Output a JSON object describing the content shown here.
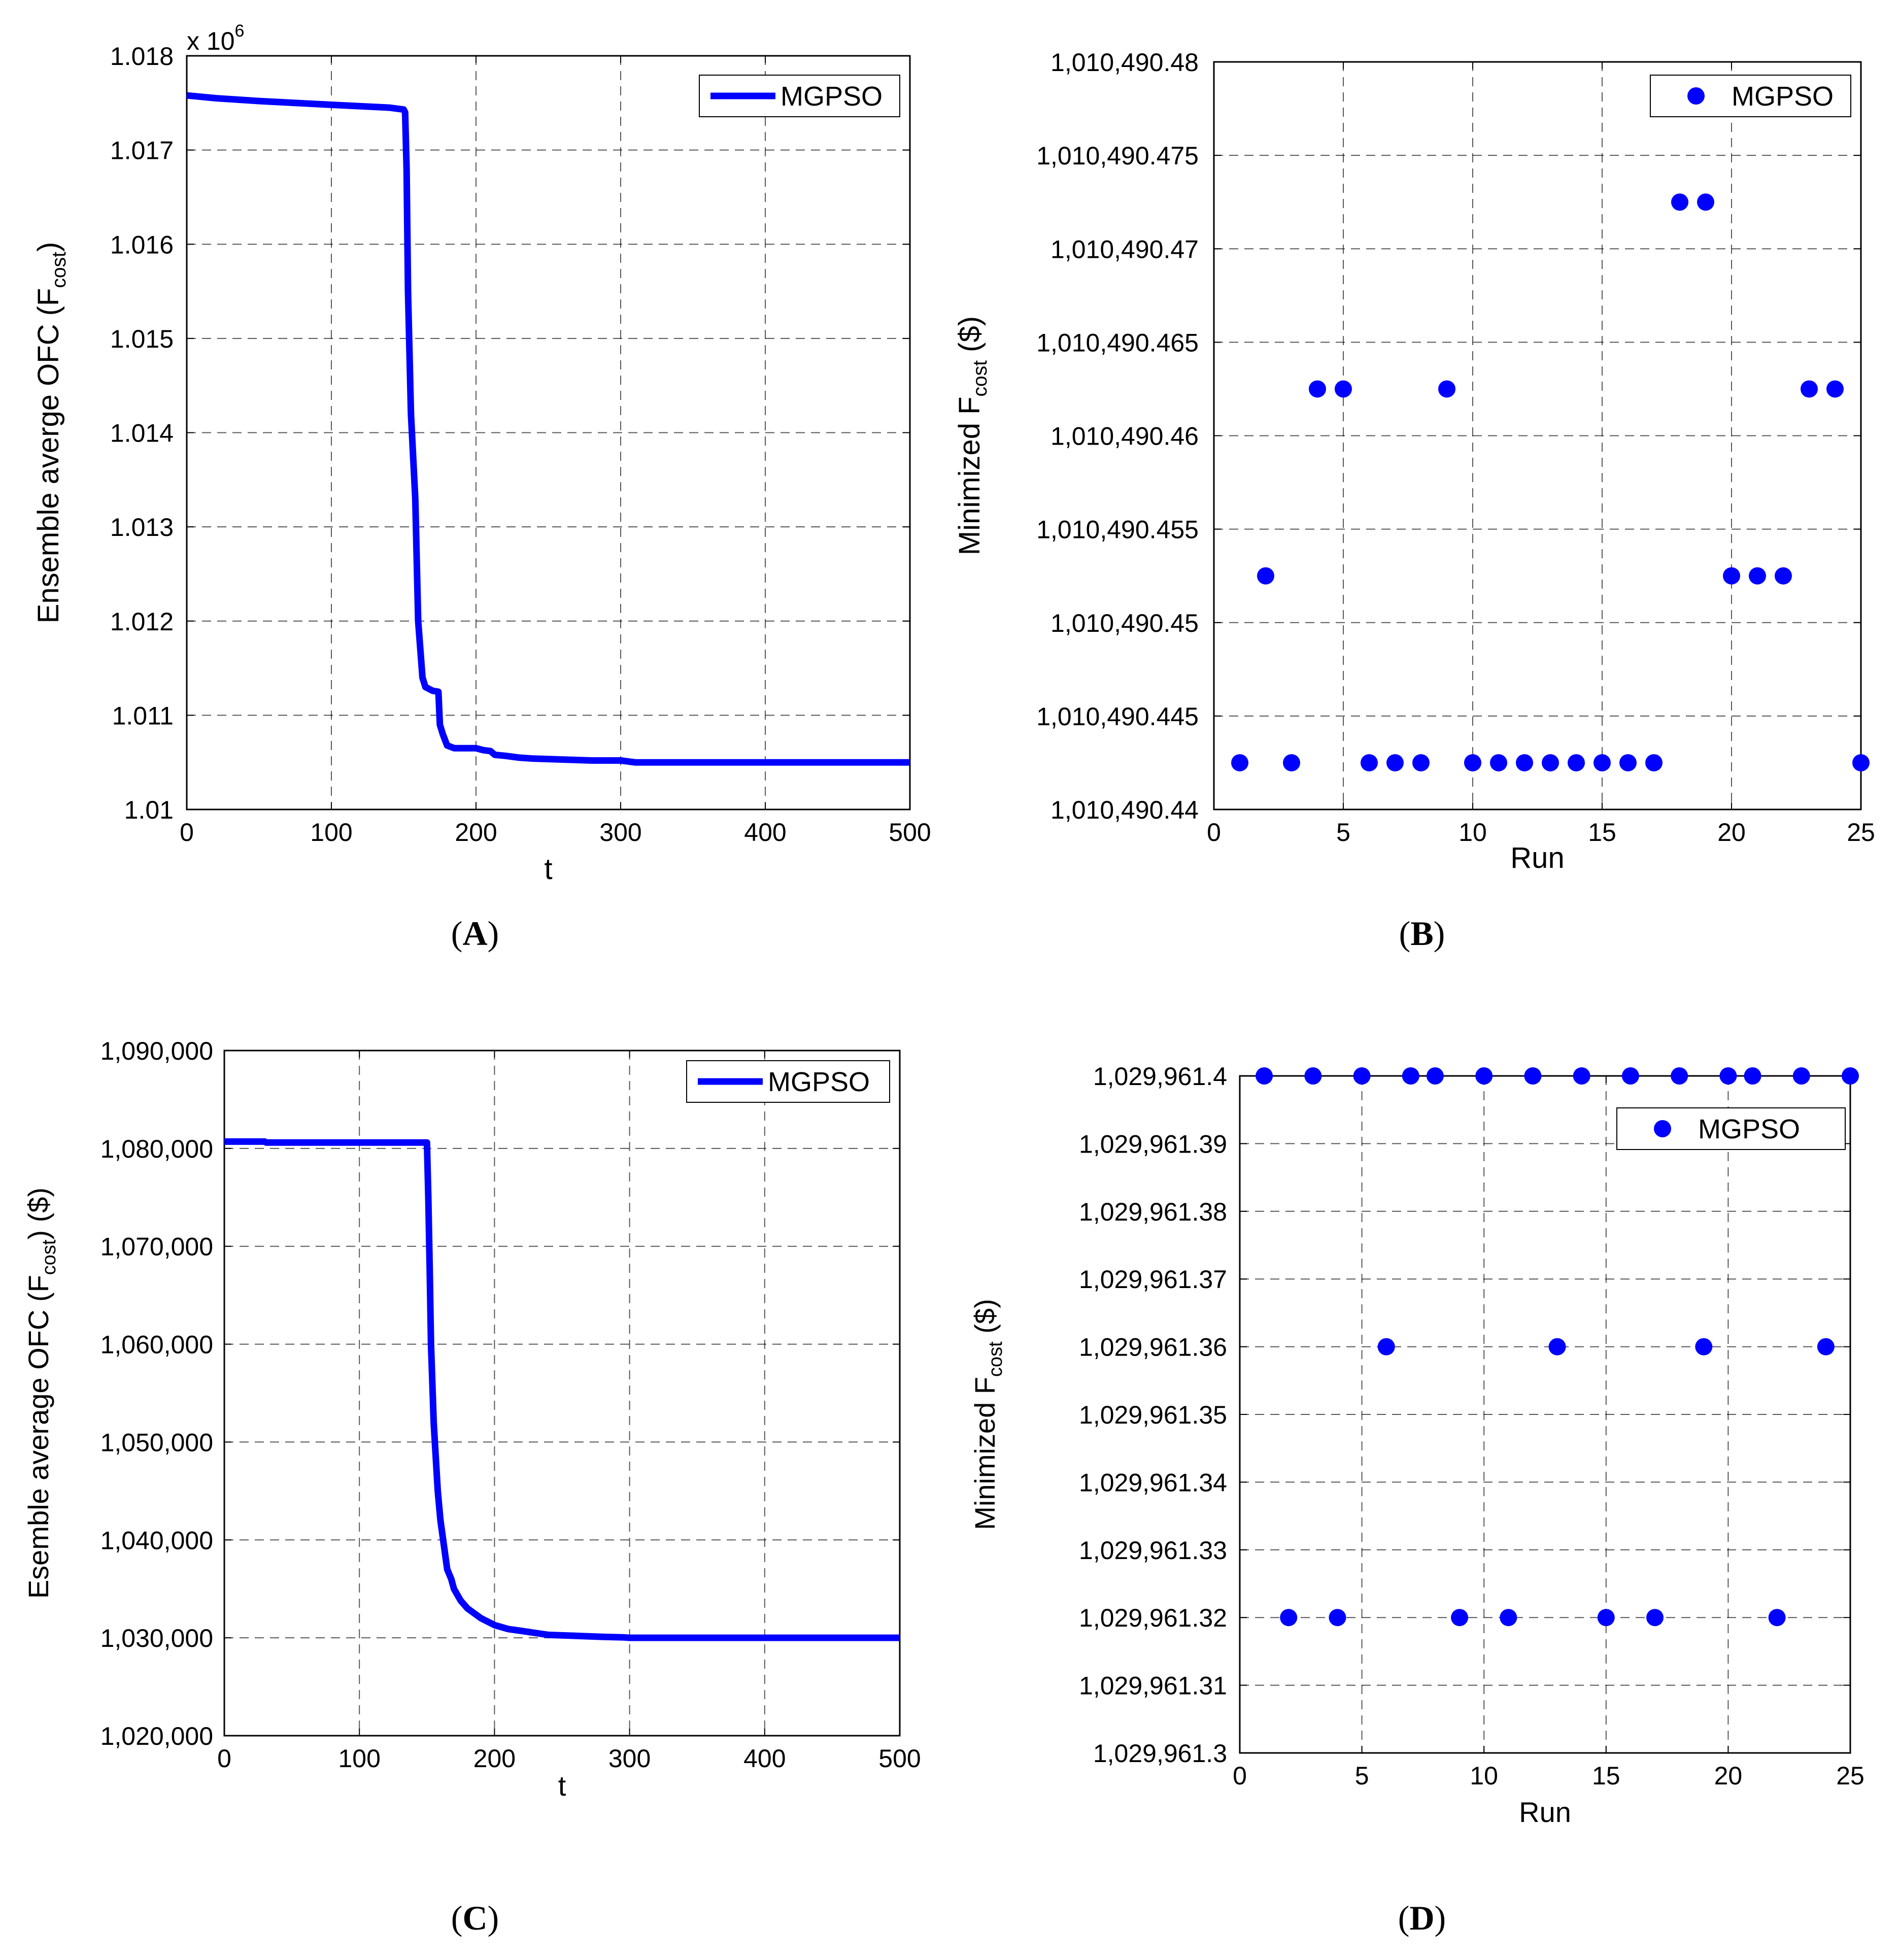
{
  "chart_data": [
    {
      "id": "A",
      "type": "line",
      "panel_label": "A",
      "xlabel": "t",
      "ylabel_main": "Ensemble averge OFC (F",
      "ylabel_sub": "cost",
      "ylabel_tail": ")",
      "multiplier_label": "x 10",
      "multiplier_exp": "6",
      "xlim": [
        0,
        500
      ],
      "ylim": [
        1.01,
        1.018
      ],
      "xticks": [
        0,
        100,
        200,
        300,
        400,
        500
      ],
      "xtick_labels": [
        "0",
        "100",
        "200",
        "300",
        "400",
        "500"
      ],
      "yticks": [
        1.01,
        1.011,
        1.012,
        1.013,
        1.014,
        1.015,
        1.016,
        1.017,
        1.018
      ],
      "ytick_labels": [
        "1.01",
        "1.011",
        "1.012",
        "1.013",
        "1.014",
        "1.015",
        "1.016",
        "1.017",
        "1.018"
      ],
      "legend": "MGPSO",
      "legend_position": "top-right",
      "grid": true,
      "color": "#0000ff",
      "series": [
        {
          "name": "MGPSO",
          "x": [
            0,
            20,
            50,
            100,
            140,
            150,
            151,
            152,
            153,
            155,
            158,
            160,
            163,
            165,
            170,
            174,
            175,
            177,
            180,
            185,
            190,
            200,
            205,
            210,
            213,
            220,
            230,
            240,
            260,
            280,
            300,
            310,
            320,
            350,
            400,
            450,
            500
          ],
          "y": [
            1.01758,
            1.01755,
            1.01752,
            1.01748,
            1.01745,
            1.01743,
            1.0174,
            1.0168,
            1.0155,
            1.0142,
            1.0133,
            1.012,
            1.0114,
            1.0113,
            1.01126,
            1.01125,
            1.0109,
            1.0108,
            1.01068,
            1.01065,
            1.01065,
            1.01065,
            1.01063,
            1.01062,
            1.01058,
            1.01057,
            1.01055,
            1.01054,
            1.01053,
            1.01052,
            1.01052,
            1.0105,
            1.0105,
            1.0105,
            1.0105,
            1.0105,
            1.0105
          ]
        }
      ]
    },
    {
      "id": "B",
      "type": "scatter",
      "panel_label": "B",
      "xlabel": "Run",
      "ylabel_main": "Minimized F",
      "ylabel_sub": "cost",
      "ylabel_tail": " ($)",
      "xlim": [
        0,
        25
      ],
      "ylim": [
        1010490.44,
        1010490.48
      ],
      "xticks": [
        0,
        5,
        10,
        15,
        20,
        25
      ],
      "xtick_labels": [
        "0",
        "5",
        "10",
        "15",
        "20",
        "25"
      ],
      "yticks": [
        1010490.44,
        1010490.445,
        1010490.45,
        1010490.455,
        1010490.46,
        1010490.465,
        1010490.47,
        1010490.475,
        1010490.48
      ],
      "ytick_labels": [
        "1,010,490.44",
        "1,010,490.445",
        "1,010,490.45",
        "1,010,490.455",
        "1,010,490.46",
        "1,010,490.465",
        "1,010,490.47",
        "1,010,490.475",
        "1,010,490.48"
      ],
      "legend": "MGPSO",
      "legend_position": "top-right",
      "grid": true,
      "color": "#0000ff",
      "series": [
        {
          "name": "MGPSO",
          "x": [
            1,
            2,
            3,
            4,
            5,
            6,
            7,
            8,
            9,
            10,
            11,
            12,
            13,
            14,
            15,
            16,
            17,
            18,
            19,
            20,
            21,
            22,
            23,
            24,
            25
          ],
          "y": [
            1010490.4425,
            1010490.4525,
            1010490.4425,
            1010490.4625,
            1010490.4625,
            1010490.4425,
            1010490.4425,
            1010490.4425,
            1010490.4625,
            1010490.4425,
            1010490.4425,
            1010490.4425,
            1010490.4425,
            1010490.4425,
            1010490.4425,
            1010490.4425,
            1010490.4425,
            1010490.4725,
            1010490.4725,
            1010490.4525,
            1010490.4525,
            1010490.4525,
            1010490.4625,
            1010490.4625,
            1010490.4425
          ]
        }
      ]
    },
    {
      "id": "C",
      "type": "line",
      "panel_label": "C",
      "xlabel": "t",
      "ylabel_main": "Esemble average OFC (F",
      "ylabel_sub": "cost",
      "ylabel_tail": ") ($)",
      "xlim": [
        0,
        500
      ],
      "ylim": [
        1020000,
        1090000
      ],
      "xticks": [
        0,
        100,
        200,
        300,
        400,
        500
      ],
      "xtick_labels": [
        "0",
        "100",
        "200",
        "300",
        "400",
        "500"
      ],
      "yticks": [
        1020000,
        1030000,
        1040000,
        1050000,
        1060000,
        1070000,
        1080000,
        1090000
      ],
      "ytick_labels": [
        "1,020,000",
        "1,030,000",
        "1,040,000",
        "1,050,000",
        "1,060,000",
        "1,070,000",
        "1,080,000",
        "1,090,000"
      ],
      "legend": "MGPSO",
      "legend_position": "top-right",
      "grid": true,
      "color": "#0000ff",
      "series": [
        {
          "name": "MGPSO",
          "x": [
            0,
            30,
            31,
            100,
            148,
            150,
            151,
            152,
            153,
            155,
            158,
            160,
            163,
            165,
            168,
            170,
            175,
            180,
            190,
            200,
            210,
            220,
            230,
            240,
            260,
            280,
            295,
            300,
            350,
            400,
            450,
            500
          ],
          "y": [
            1080700,
            1080700,
            1080600,
            1080600,
            1080600,
            1080600,
            1075000,
            1068000,
            1060000,
            1052000,
            1045000,
            1042000,
            1039000,
            1037000,
            1036000,
            1035000,
            1033800,
            1033000,
            1032000,
            1031300,
            1030900,
            1030700,
            1030500,
            1030300,
            1030200,
            1030100,
            1030050,
            1030000,
            1030000,
            1030000,
            1030000,
            1030000
          ]
        }
      ]
    },
    {
      "id": "D",
      "type": "scatter",
      "panel_label": "D",
      "xlabel": "Run",
      "ylabel_main": "Minimized F",
      "ylabel_sub": "cost",
      "ylabel_tail": " ($)",
      "xlim": [
        0,
        25
      ],
      "ylim": [
        1029961.3,
        1029961.4
      ],
      "xticks": [
        0,
        5,
        10,
        15,
        20,
        25
      ],
      "xtick_labels": [
        "0",
        "5",
        "10",
        "15",
        "20",
        "25"
      ],
      "yticks": [
        1029961.3,
        1029961.31,
        1029961.32,
        1029961.33,
        1029961.34,
        1029961.35,
        1029961.36,
        1029961.37,
        1029961.38,
        1029961.39,
        1029961.4
      ],
      "ytick_labels": [
        "1,029,961.3",
        "1,029,961.31",
        "1,029,961.32",
        "1,029,961.33",
        "1,029,961.34",
        "1,029,961.35",
        "1,029,961.36",
        "1,029,961.37",
        "1,029,961.38",
        "1,029,961.39",
        "1,029,961.4"
      ],
      "legend": "MGPSO",
      "legend_position": "top-right",
      "grid": true,
      "color": "#0000ff",
      "series": [
        {
          "name": "MGPSO",
          "x": [
            1,
            2,
            3,
            4,
            5,
            6,
            7,
            8,
            9,
            10,
            11,
            12,
            13,
            14,
            15,
            16,
            17,
            18,
            19,
            20,
            21,
            22,
            23,
            24,
            25
          ],
          "y": [
            1029961.4,
            1029961.32,
            1029961.4,
            1029961.32,
            1029961.4,
            1029961.36,
            1029961.4,
            1029961.4,
            1029961.32,
            1029961.4,
            1029961.32,
            1029961.4,
            1029961.36,
            1029961.4,
            1029961.32,
            1029961.4,
            1029961.32,
            1029961.4,
            1029961.36,
            1029961.4,
            1029961.4,
            1029961.32,
            1029961.4,
            1029961.36,
            1029961.4
          ]
        }
      ]
    }
  ]
}
